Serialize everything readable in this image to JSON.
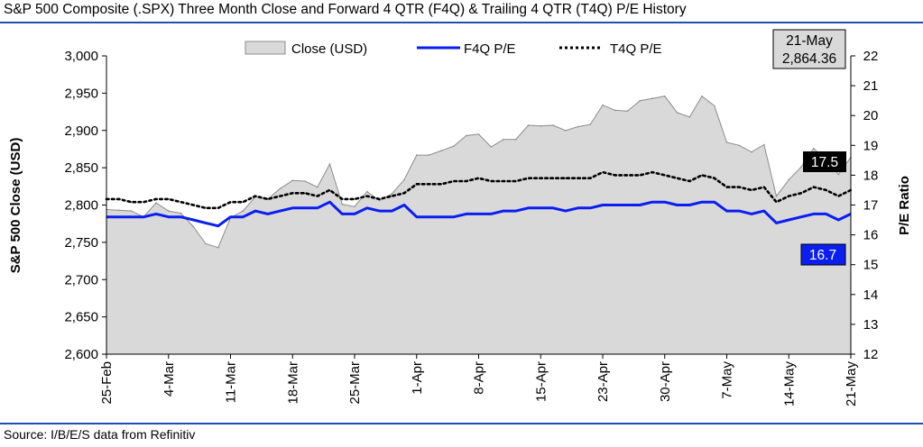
{
  "title": "S&P 500 Composite (.SPX) Three Month Close and Forward 4 QTR (F4Q) & Trailing 4 QTR (T4Q) P/E History",
  "source": "Source: I/B/E/S data from Refinitiv",
  "colors": {
    "rule": "#1f4fb4",
    "area_fill": "#d9d9d9",
    "area_stroke": "#8c8c8c",
    "f4q_line": "#0a1ef0",
    "t4q_line": "#000000",
    "f4q_badge": "#0a1ef0",
    "t4q_badge": "#000000",
    "date_box": "#d9d9d9"
  },
  "date_box": {
    "date": "21-May",
    "value": "2,864.36"
  },
  "badges": {
    "t4q_last": "17.5",
    "f4q_last": "16.7"
  },
  "chart_data": {
    "type": "line",
    "xlabel": "",
    "ylabel": "S&P 500 Close (USD)",
    "y2label": "P/E Ratio",
    "ylim": [
      2600,
      3000
    ],
    "y2lim": [
      12,
      22
    ],
    "yticks": [
      "2,600",
      "2,650",
      "2,700",
      "2,750",
      "2,800",
      "2,850",
      "2,900",
      "2,950",
      "3,000"
    ],
    "y2ticks": [
      "12",
      "13",
      "14",
      "15",
      "16",
      "17",
      "18",
      "19",
      "20",
      "21",
      "22"
    ],
    "xtick_labels": [
      "25-Feb",
      "4-Mar",
      "11-Mar",
      "18-Mar",
      "25-Mar",
      "1-Apr",
      "8-Apr",
      "15-Apr",
      "23-Apr",
      "30-Apr",
      "7-May",
      "14-May",
      "21-May"
    ],
    "legend_position": "top",
    "legend": [
      "Close (USD)",
      "F4Q P/E",
      "T4Q P/E"
    ],
    "x": [
      "25-Feb",
      "26-Feb",
      "27-Feb",
      "28-Feb",
      "1-Mar",
      "4-Mar",
      "5-Mar",
      "6-Mar",
      "7-Mar",
      "8-Mar",
      "11-Mar",
      "12-Mar",
      "13-Mar",
      "14-Mar",
      "15-Mar",
      "18-Mar",
      "19-Mar",
      "20-Mar",
      "21-Mar",
      "22-Mar",
      "25-Mar",
      "26-Mar",
      "27-Mar",
      "28-Mar",
      "29-Mar",
      "1-Apr",
      "2-Apr",
      "3-Apr",
      "4-Apr",
      "5-Apr",
      "8-Apr",
      "9-Apr",
      "10-Apr",
      "11-Apr",
      "12-Apr",
      "15-Apr",
      "16-Apr",
      "17-Apr",
      "18-Apr",
      "22-Apr",
      "23-Apr",
      "24-Apr",
      "25-Apr",
      "26-Apr",
      "29-Apr",
      "30-Apr",
      "1-May",
      "2-May",
      "3-May",
      "6-May",
      "7-May",
      "8-May",
      "9-May",
      "10-May",
      "13-May",
      "14-May",
      "15-May",
      "16-May",
      "17-May",
      "20-May",
      "21-May"
    ],
    "series": [
      {
        "name": "Close (USD)",
        "style": "area",
        "axis": "left",
        "values": [
          2794,
          2793,
          2792,
          2784,
          2803,
          2792,
          2789,
          2771,
          2748,
          2743,
          2783,
          2792,
          2811,
          2808,
          2822,
          2833,
          2832,
          2824,
          2855,
          2801,
          2798,
          2818,
          2806,
          2815,
          2834,
          2867,
          2867,
          2873,
          2879,
          2893,
          2895,
          2878,
          2888,
          2888,
          2907,
          2906,
          2907,
          2900,
          2905,
          2908,
          2934,
          2927,
          2926,
          2940,
          2943,
          2946,
          2924,
          2918,
          2946,
          2933,
          2884,
          2880,
          2871,
          2881,
          2812,
          2834,
          2851,
          2876,
          2860,
          2841,
          2864
        ]
      },
      {
        "name": "F4Q P/E",
        "style": "solid",
        "axis": "right",
        "values": [
          16.6,
          16.6,
          16.6,
          16.6,
          16.7,
          16.6,
          16.6,
          16.5,
          16.4,
          16.3,
          16.6,
          16.6,
          16.8,
          16.7,
          16.8,
          16.9,
          16.9,
          16.9,
          17.1,
          16.7,
          16.7,
          16.9,
          16.8,
          16.8,
          17.0,
          16.6,
          16.6,
          16.6,
          16.6,
          16.7,
          16.7,
          16.7,
          16.8,
          16.8,
          16.9,
          16.9,
          16.9,
          16.8,
          16.9,
          16.9,
          17.0,
          17.0,
          17.0,
          17.0,
          17.1,
          17.1,
          17.0,
          17.0,
          17.1,
          17.1,
          16.8,
          16.8,
          16.7,
          16.8,
          16.4,
          16.5,
          16.6,
          16.7,
          16.7,
          16.5,
          16.7
        ]
      },
      {
        "name": "T4Q P/E",
        "style": "dotted",
        "axis": "right",
        "values": [
          17.2,
          17.2,
          17.1,
          17.1,
          17.2,
          17.2,
          17.1,
          17.0,
          16.9,
          16.9,
          17.1,
          17.1,
          17.3,
          17.2,
          17.3,
          17.4,
          17.4,
          17.3,
          17.5,
          17.2,
          17.2,
          17.3,
          17.2,
          17.3,
          17.4,
          17.7,
          17.7,
          17.7,
          17.8,
          17.8,
          17.9,
          17.8,
          17.8,
          17.8,
          17.9,
          17.9,
          17.9,
          17.9,
          17.9,
          17.9,
          18.1,
          18.0,
          18.0,
          18.0,
          18.1,
          18.0,
          17.9,
          17.8,
          18.0,
          17.9,
          17.6,
          17.6,
          17.5,
          17.6,
          17.1,
          17.3,
          17.4,
          17.6,
          17.5,
          17.3,
          17.5
        ]
      }
    ]
  }
}
